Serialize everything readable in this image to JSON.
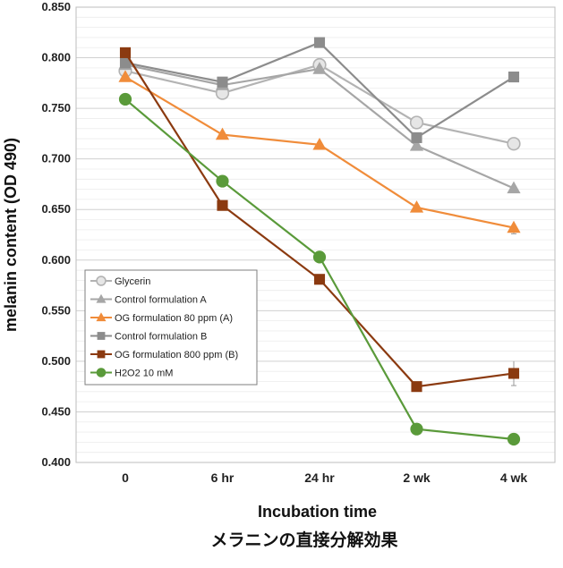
{
  "caption": "メラニンの直接分解効果",
  "chart_data": {
    "type": "line",
    "title": "",
    "xlabel": "Incubation time",
    "ylabel": "melanin content (OD 490)",
    "categories": [
      "0",
      "6 hr",
      "24 hr",
      "2 wk",
      "4 wk"
    ],
    "ylim": [
      0.4,
      0.85
    ],
    "yticks": [
      "0.400",
      "0.450",
      "0.500",
      "0.550",
      "0.600",
      "0.650",
      "0.700",
      "0.750",
      "0.800",
      "0.850"
    ],
    "grid": true,
    "legend_position": "lower-left",
    "series": [
      {
        "name": "Glycerin",
        "marker": "circle-open",
        "color": "#b3b3b3",
        "values": [
          0.787,
          0.765,
          0.793,
          0.736,
          0.715
        ]
      },
      {
        "name": "Control formulation A",
        "marker": "triangle",
        "color": "#a6a6a6",
        "values": [
          0.793,
          0.773,
          0.789,
          0.713,
          0.671
        ]
      },
      {
        "name": "OG formulation 80 ppm (A)",
        "marker": "triangle",
        "color": "#f08c3a",
        "values": [
          0.781,
          0.724,
          0.714,
          0.652,
          0.632
        ]
      },
      {
        "name": "Control formulation B",
        "marker": "square",
        "color": "#8c8c8c",
        "values": [
          0.795,
          0.776,
          0.815,
          0.721,
          0.781
        ]
      },
      {
        "name": "OG formulation 800 ppm (B)",
        "marker": "square",
        "color": "#8b3a10",
        "values": [
          0.805,
          0.654,
          0.581,
          0.475,
          0.488
        ]
      },
      {
        "name": "H2O2 10 mM",
        "marker": "circle",
        "color": "#5a9a3a",
        "values": [
          0.759,
          0.678,
          0.603,
          0.433,
          0.423
        ]
      }
    ]
  }
}
